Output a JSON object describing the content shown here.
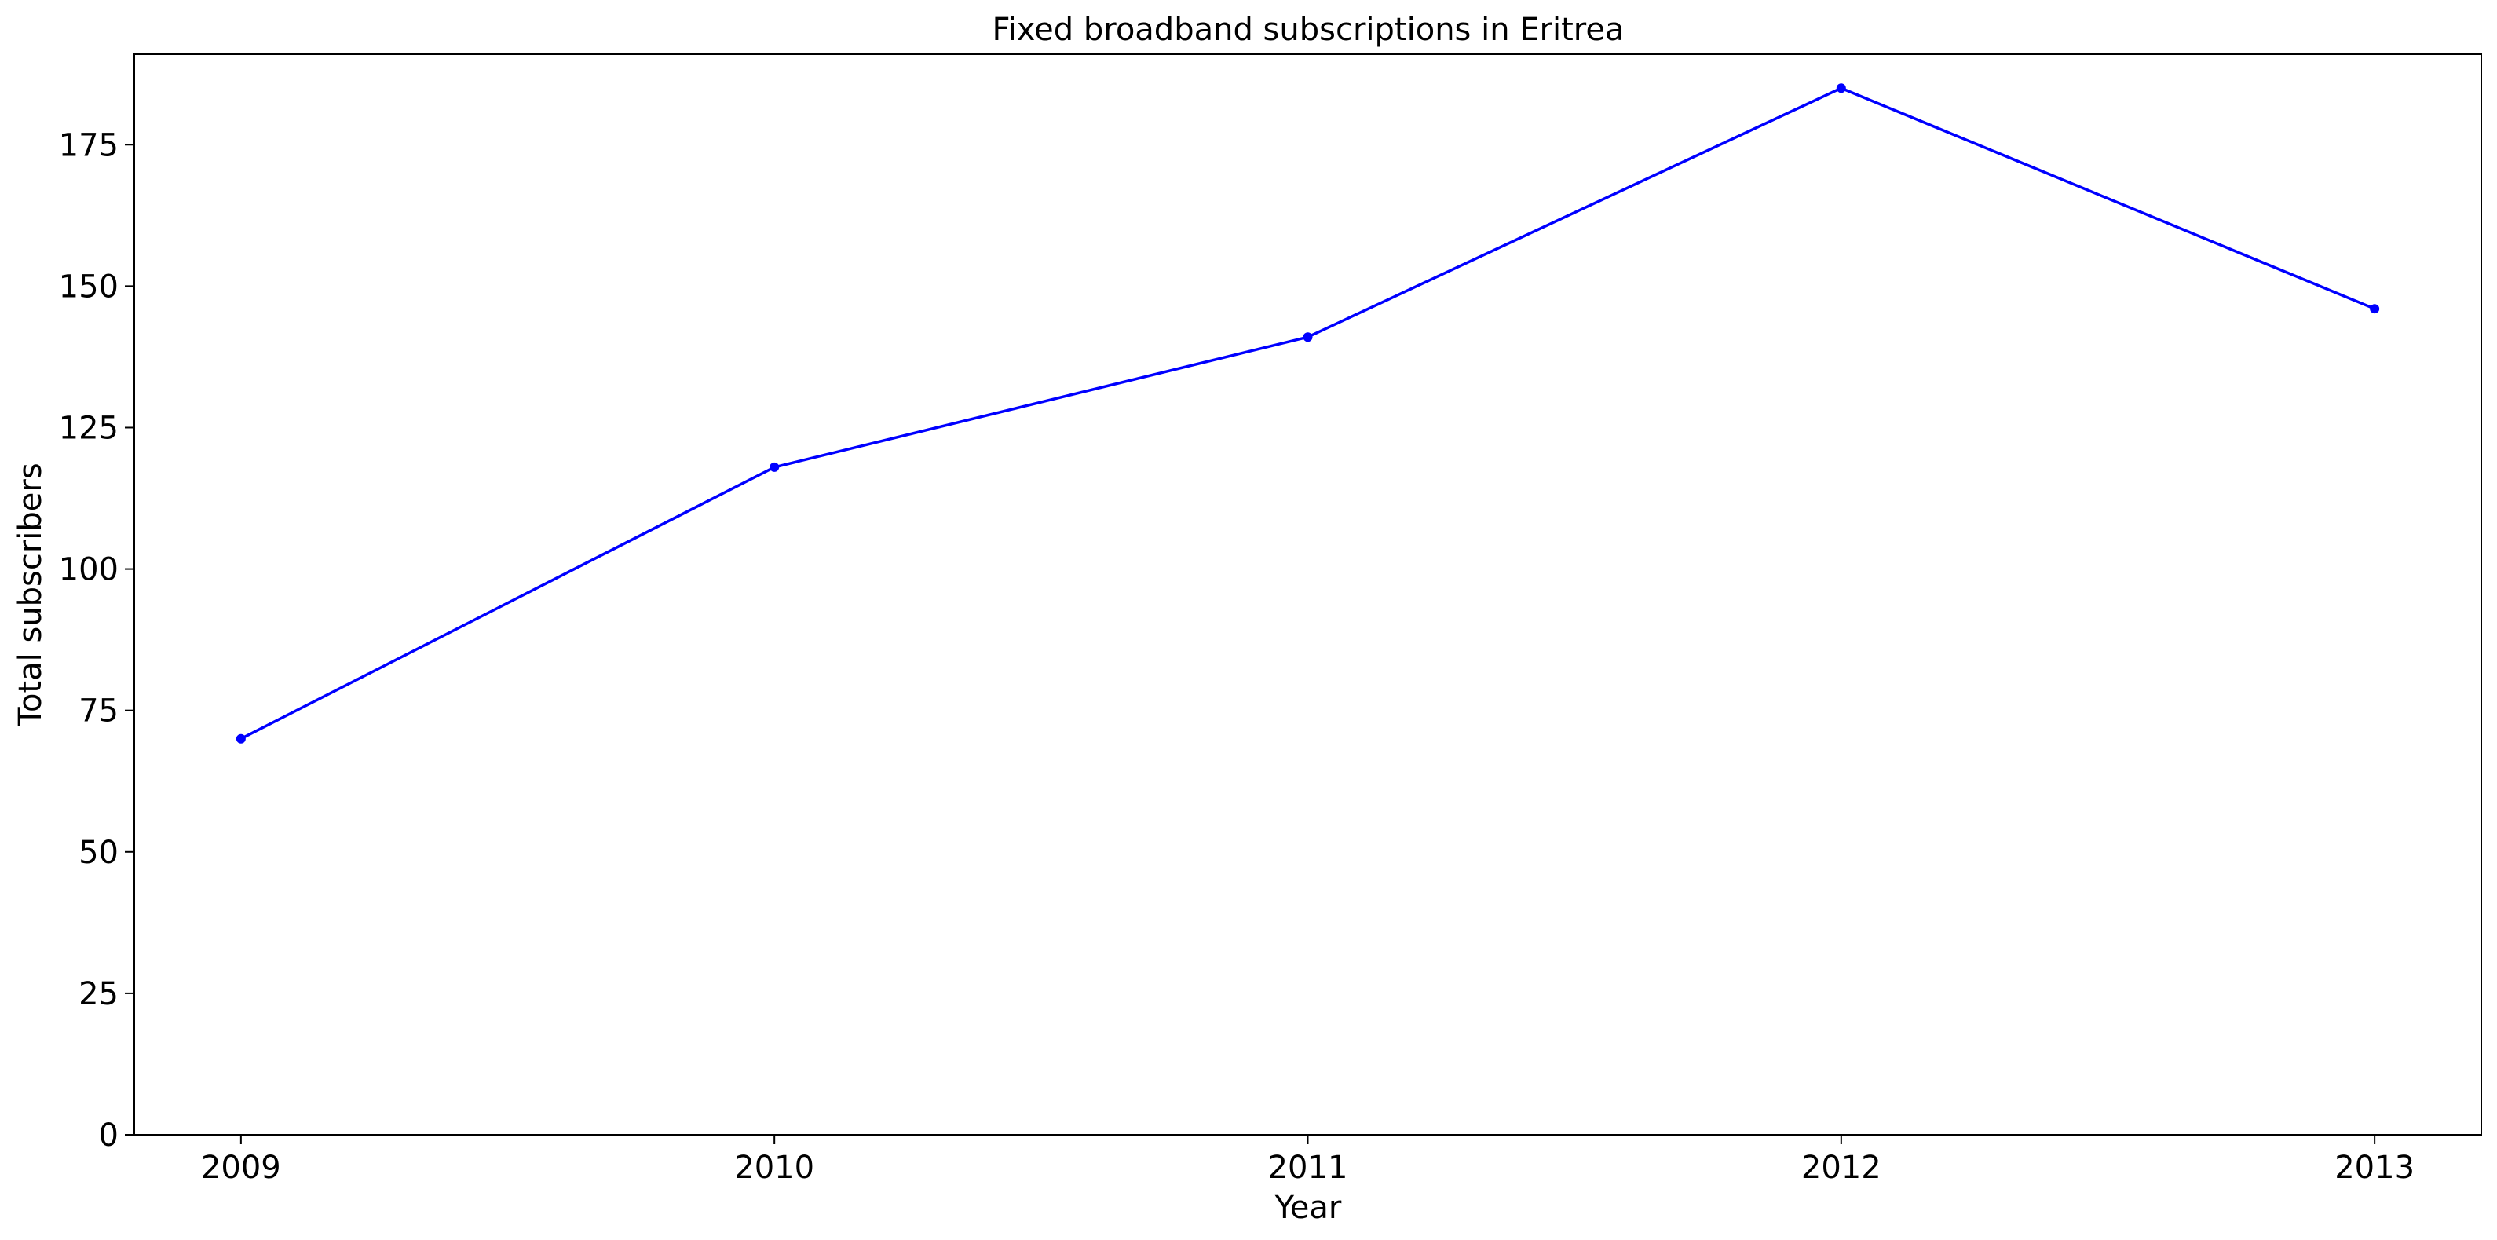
{
  "chart_data": {
    "type": "line",
    "title": "Fixed broadband subscriptions in Eritrea",
    "xlabel": "Year",
    "ylabel": "Total subscribers",
    "x": [
      "2009",
      "2010",
      "2011",
      "2012",
      "2013"
    ],
    "xlim": [
      2008.8,
      2013.2
    ],
    "ylim": [
      0,
      191
    ],
    "yticks": [
      0,
      25,
      50,
      75,
      100,
      125,
      150,
      175
    ],
    "grid": false,
    "legend": "none",
    "series": [
      {
        "values": [
          70,
          118,
          141,
          185,
          146
        ],
        "color": "#0000ff",
        "marker": "circle"
      }
    ]
  }
}
